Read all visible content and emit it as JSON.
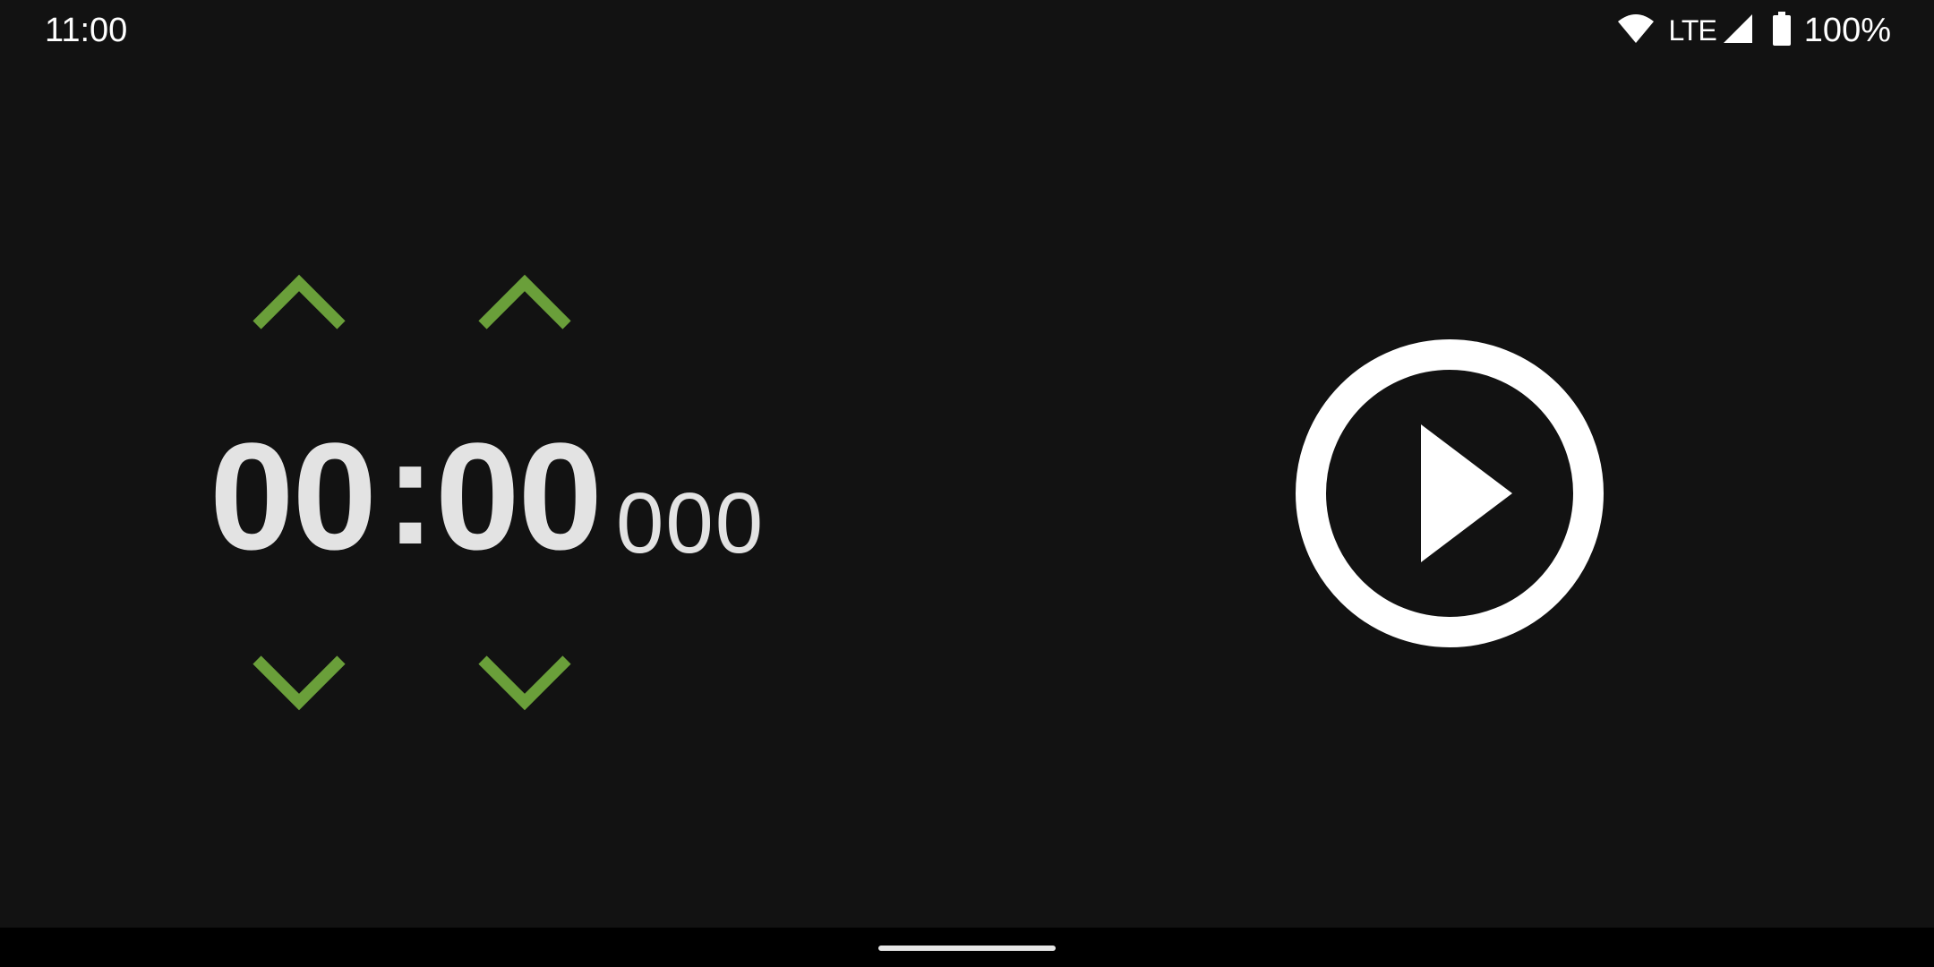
{
  "status_bar": {
    "time": "11:00",
    "network": "LTE",
    "battery": "100%",
    "icons": [
      "wifi-icon",
      "signal-icon",
      "battery-icon"
    ]
  },
  "timer": {
    "hours": "00",
    "separator": ":",
    "minutes": "00",
    "milliseconds": "000",
    "controls": {
      "increase_icon": "chevron-up-icon",
      "decrease_icon": "chevron-down-icon"
    }
  },
  "play_button": {
    "icon": "play-icon"
  },
  "colors": {
    "background": "#121212",
    "digits": "#e3e3e3",
    "chevron_accent": "#6a9f3a",
    "play": "#ffffff",
    "nav_bar": "#000000"
  }
}
